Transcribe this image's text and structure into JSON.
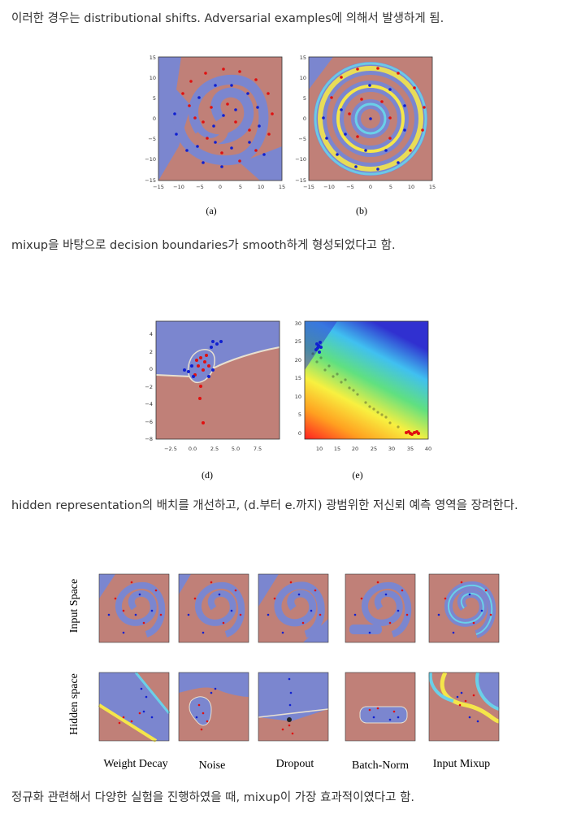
{
  "paragraphs": {
    "p1": "이러한 경우는 distributional shifts. Adversarial examples에 의해서 발생하게 됨.",
    "p2": "mixup을 바탕으로 decision boundaries가 smooth하게 형성되었다고 함.",
    "p3": "hidden representation의 배치를 개선하고, (d.부터 e.까지) 광범위한 저신뢰 예측 영역을 장려한다.",
    "p4": "정규화 관련해서 다양한 실험을 진행하였을 때, mixup이 가장 효과적이였다고 함."
  },
  "figure1": {
    "caption_a": "(a)",
    "caption_b": "(b)",
    "ticks": [
      "15",
      "10",
      "5",
      "0",
      "−5",
      "−10",
      "−15"
    ],
    "xticks": [
      "−15",
      "−10",
      "−5",
      "0",
      "5",
      "10",
      "15"
    ]
  },
  "figure2": {
    "caption_d": "(d)",
    "caption_e": "(e)",
    "d_yticks": [
      "4",
      "2",
      "0",
      "−2",
      "−4",
      "−6",
      "−8"
    ],
    "d_xticks": [
      "−2.5",
      "0.0",
      "2.5",
      "5.0",
      "7.5"
    ],
    "e_yticks": [
      "30",
      "25",
      "20",
      "15",
      "10",
      "5",
      "0"
    ],
    "e_xticks": [
      "10",
      "15",
      "20",
      "25",
      "30",
      "35",
      "40"
    ]
  },
  "figure3": {
    "row_input": "Input Space",
    "row_hidden": "Hidden space",
    "columns": [
      "Weight Decay",
      "Noise",
      "Dropout",
      "Batch-Norm",
      "Input Mixup"
    ]
  },
  "colors": {
    "blue_region": "#7b86cf",
    "red_region": "#c08078",
    "point_red": "#e01010",
    "point_blue": "#1020d0"
  }
}
